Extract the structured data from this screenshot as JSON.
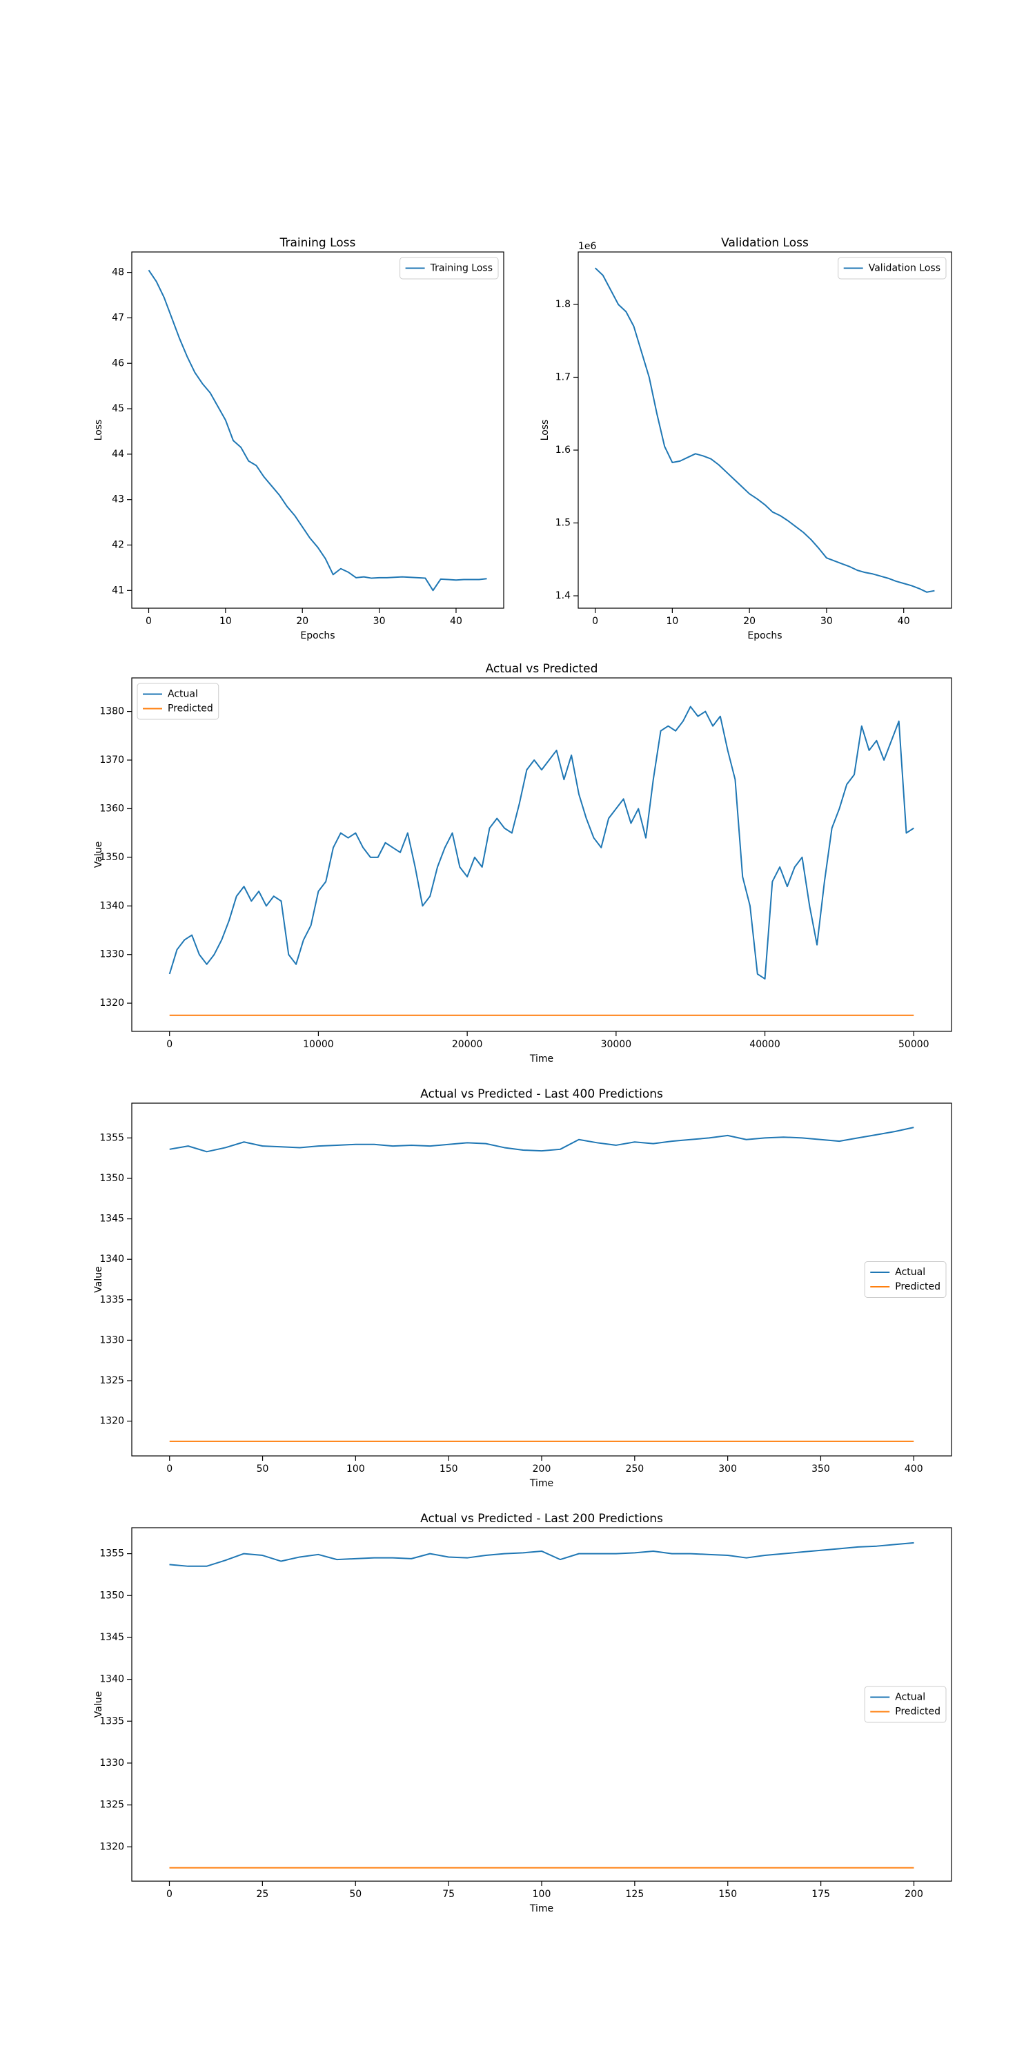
{
  "chart_data": [
    {
      "type": "line",
      "title": "Training Loss",
      "xlabel": "Epochs",
      "ylabel": "Loss",
      "legend": "upper right",
      "x": [
        0,
        1,
        2,
        3,
        4,
        5,
        6,
        7,
        8,
        9,
        10,
        11,
        12,
        13,
        14,
        15,
        16,
        17,
        18,
        19,
        20,
        21,
        22,
        23,
        24,
        25,
        26,
        27,
        28,
        29,
        30,
        31,
        32,
        33,
        34,
        35,
        36,
        37,
        38,
        39,
        40,
        41,
        42,
        43,
        44
      ],
      "series": [
        {
          "name": "Training Loss",
          "color": "#1f77b4",
          "values": [
            48.05,
            47.8,
            47.45,
            47.0,
            46.55,
            46.15,
            45.8,
            45.55,
            45.35,
            45.05,
            44.75,
            44.3,
            44.15,
            43.85,
            43.75,
            43.5,
            43.3,
            43.1,
            42.85,
            42.65,
            42.4,
            42.15,
            41.95,
            41.7,
            41.35,
            41.48,
            41.4,
            41.28,
            41.3,
            41.27,
            41.28,
            41.28,
            41.29,
            41.3,
            41.29,
            41.28,
            41.27,
            41.0,
            41.25,
            41.24,
            41.23,
            41.24,
            41.24,
            41.24,
            41.26
          ]
        }
      ],
      "xlim": [
        -2.2,
        46.2
      ],
      "ylim": [
        40.61,
        48.45
      ],
      "xticks": [
        0,
        10,
        20,
        30,
        40
      ],
      "yticks": [
        41,
        42,
        43,
        44,
        45,
        46,
        47,
        48
      ]
    },
    {
      "type": "line",
      "title": "Validation Loss",
      "xlabel": "Epochs",
      "ylabel": "Loss",
      "legend": "upper right",
      "offset_text": "1e6",
      "x": [
        0,
        1,
        2,
        3,
        4,
        5,
        6,
        7,
        8,
        9,
        10,
        11,
        12,
        13,
        14,
        15,
        16,
        17,
        18,
        19,
        20,
        21,
        22,
        23,
        24,
        25,
        26,
        27,
        28,
        29,
        30,
        31,
        32,
        33,
        34,
        35,
        36,
        37,
        38,
        39,
        40,
        41,
        42,
        43,
        44
      ],
      "series": [
        {
          "name": "Validation Loss",
          "color": "#1f77b4",
          "values": [
            1.85,
            1.84,
            1.82,
            1.8,
            1.79,
            1.77,
            1.735,
            1.7,
            1.65,
            1.605,
            1.583,
            1.585,
            1.59,
            1.595,
            1.592,
            1.588,
            1.58,
            1.57,
            1.56,
            1.55,
            1.54,
            1.533,
            1.525,
            1.515,
            1.51,
            1.503,
            1.495,
            1.487,
            1.477,
            1.465,
            1.452,
            1.448,
            1.444,
            1.44,
            1.435,
            1.432,
            1.43,
            1.427,
            1.424,
            1.42,
            1.417,
            1.414,
            1.41,
            1.405,
            1.407
          ]
        }
      ],
      "xlim": [
        -2.2,
        46.2
      ],
      "ylim": [
        1.383,
        1.872
      ],
      "xticks": [
        0,
        10,
        20,
        30,
        40
      ],
      "yticks": [
        1.4,
        1.5,
        1.6,
        1.7,
        1.8
      ]
    },
    {
      "type": "line",
      "title": "Actual vs Predicted",
      "xlabel": "Time",
      "ylabel": "Value",
      "legend": "upper left",
      "x": [
        0,
        500,
        1000,
        1500,
        2000,
        2500,
        3000,
        3500,
        4000,
        4500,
        5000,
        5500,
        6000,
        6500,
        7000,
        7500,
        8000,
        8500,
        9000,
        9500,
        10000,
        10500,
        11000,
        11500,
        12000,
        12500,
        13000,
        13500,
        14000,
        14500,
        15000,
        15500,
        16000,
        16500,
        17000,
        17500,
        18000,
        18500,
        19000,
        19500,
        20000,
        20500,
        21000,
        21500,
        22000,
        22500,
        23000,
        23500,
        24000,
        24500,
        25000,
        25500,
        26000,
        26500,
        27000,
        27500,
        28000,
        28500,
        29000,
        29500,
        30000,
        30500,
        31000,
        31500,
        32000,
        32500,
        33000,
        33500,
        34000,
        34500,
        35000,
        35500,
        36000,
        36500,
        37000,
        37500,
        38000,
        38500,
        39000,
        39500,
        40000,
        40500,
        41000,
        41500,
        42000,
        42500,
        43000,
        43500,
        44000,
        44500,
        45000,
        45500,
        46000,
        46500,
        47000,
        47500,
        48000,
        48500,
        49000,
        49500,
        50000
      ],
      "series": [
        {
          "name": "Actual",
          "color": "#1f77b4",
          "values": [
            1326,
            1331,
            1333,
            1334,
            1330,
            1328,
            1330,
            1333,
            1337,
            1342,
            1344,
            1341,
            1343,
            1340,
            1342,
            1341,
            1330,
            1328,
            1333,
            1336,
            1343,
            1345,
            1352,
            1355,
            1354,
            1355,
            1352,
            1350,
            1350,
            1353,
            1352,
            1351,
            1355,
            1348,
            1340,
            1342,
            1348,
            1352,
            1355,
            1348,
            1346,
            1350,
            1348,
            1356,
            1358,
            1356,
            1355,
            1361,
            1368,
            1370,
            1368,
            1370,
            1372,
            1366,
            1371,
            1363,
            1358,
            1354,
            1352,
            1358,
            1360,
            1362,
            1357,
            1360,
            1354,
            1366,
            1376,
            1377,
            1376,
            1378,
            1381,
            1379,
            1380,
            1377,
            1379,
            1372,
            1366,
            1346,
            1340,
            1326,
            1325,
            1345,
            1348,
            1344,
            1348,
            1350,
            1340,
            1332,
            1345,
            1356,
            1360,
            1365,
            1367,
            1377,
            1372,
            1374,
            1370,
            1374,
            1378,
            1355,
            1356
          ]
        },
        {
          "name": "Predicted",
          "color": "#ff7f0e",
          "values": [
            1317.5,
            1317.5,
            1317.5,
            1317.5,
            1317.5,
            1317.5,
            1317.5,
            1317.5,
            1317.5,
            1317.5,
            1317.5,
            1317.5,
            1317.5,
            1317.5,
            1317.5,
            1317.5,
            1317.5,
            1317.5,
            1317.5,
            1317.5,
            1317.5,
            1317.5,
            1317.5,
            1317.5,
            1317.5,
            1317.5,
            1317.5,
            1317.5,
            1317.5,
            1317.5,
            1317.5,
            1317.5,
            1317.5,
            1317.5,
            1317.5,
            1317.5,
            1317.5,
            1317.5,
            1317.5,
            1317.5,
            1317.5,
            1317.5,
            1317.5,
            1317.5,
            1317.5,
            1317.5,
            1317.5,
            1317.5,
            1317.5,
            1317.5,
            1317.5,
            1317.5,
            1317.5,
            1317.5,
            1317.5,
            1317.5,
            1317.5,
            1317.5,
            1317.5,
            1317.5,
            1317.5,
            1317.5,
            1317.5,
            1317.5,
            1317.5,
            1317.5,
            1317.5,
            1317.5,
            1317.5,
            1317.5,
            1317.5,
            1317.5,
            1317.5,
            1317.5,
            1317.5,
            1317.5,
            1317.5,
            1317.5,
            1317.5,
            1317.5,
            1317.5,
            1317.5,
            1317.5,
            1317.5,
            1317.5,
            1317.5,
            1317.5,
            1317.5,
            1317.5,
            1317.5,
            1317.5,
            1317.5,
            1317.5,
            1317.5,
            1317.5,
            1317.5,
            1317.5,
            1317.5,
            1317.5,
            1317.5,
            1317.5
          ]
        }
      ],
      "xlim": [
        -2536,
        52536
      ],
      "ylim": [
        1314.2,
        1386.9
      ],
      "xticks": [
        0,
        10000,
        20000,
        30000,
        40000,
        50000
      ],
      "yticks": [
        1320,
        1330,
        1340,
        1350,
        1360,
        1370,
        1380
      ]
    },
    {
      "type": "line",
      "title": "Actual vs Predicted - Last 400 Predictions",
      "xlabel": "Time",
      "ylabel": "Value",
      "legend": "center right",
      "x": [
        0,
        10,
        20,
        30,
        40,
        50,
        60,
        70,
        80,
        90,
        100,
        110,
        120,
        130,
        140,
        150,
        160,
        170,
        180,
        190,
        200,
        210,
        220,
        230,
        240,
        250,
        260,
        270,
        280,
        290,
        300,
        310,
        320,
        330,
        340,
        350,
        360,
        370,
        380,
        390,
        400
      ],
      "series": [
        {
          "name": "Actual",
          "color": "#1f77b4",
          "values": [
            1353.6,
            1354,
            1353.3,
            1353.8,
            1354.5,
            1354,
            1353.9,
            1353.8,
            1354,
            1354.1,
            1354.2,
            1354.2,
            1354,
            1354.1,
            1354,
            1354.2,
            1354.4,
            1354.3,
            1353.8,
            1353.5,
            1353.4,
            1353.6,
            1354.8,
            1354.4,
            1354.1,
            1354.5,
            1354.3,
            1354.6,
            1354.8,
            1355,
            1355.3,
            1354.8,
            1355,
            1355.1,
            1355,
            1354.8,
            1354.6,
            1355,
            1355.4,
            1355.8,
            1356.3
          ]
        },
        {
          "name": "Predicted",
          "color": "#ff7f0e",
          "values": [
            1317.5,
            1317.5,
            1317.5,
            1317.5,
            1317.5,
            1317.5,
            1317.5,
            1317.5,
            1317.5,
            1317.5,
            1317.5,
            1317.5,
            1317.5,
            1317.5,
            1317.5,
            1317.5,
            1317.5,
            1317.5,
            1317.5,
            1317.5,
            1317.5,
            1317.5,
            1317.5,
            1317.5,
            1317.5,
            1317.5,
            1317.5,
            1317.5,
            1317.5,
            1317.5,
            1317.5,
            1317.5,
            1317.5,
            1317.5,
            1317.5,
            1317.5,
            1317.5,
            1317.5,
            1317.5,
            1317.5,
            1317.5
          ]
        }
      ],
      "xlim": [
        -20.3,
        420.3
      ],
      "ylim": [
        1315.7,
        1359.3
      ],
      "xticks": [
        0,
        50,
        100,
        150,
        200,
        250,
        300,
        350,
        400
      ],
      "yticks": [
        1320,
        1325,
        1330,
        1335,
        1340,
        1345,
        1350,
        1355
      ]
    },
    {
      "type": "line",
      "title": "Actual vs Predicted - Last 200 Predictions",
      "xlabel": "Time",
      "ylabel": "Value",
      "legend": "center right",
      "x": [
        0,
        5,
        10,
        15,
        20,
        25,
        30,
        35,
        40,
        45,
        50,
        55,
        60,
        65,
        70,
        75,
        80,
        85,
        90,
        95,
        100,
        105,
        110,
        115,
        120,
        125,
        130,
        135,
        140,
        145,
        150,
        155,
        160,
        165,
        170,
        175,
        180,
        185,
        190,
        195,
        200
      ],
      "series": [
        {
          "name": "Actual",
          "color": "#1f77b4",
          "values": [
            1353.7,
            1353.5,
            1353.5,
            1354.2,
            1355,
            1354.8,
            1354.1,
            1354.6,
            1354.9,
            1354.3,
            1354.4,
            1354.5,
            1354.5,
            1354.4,
            1355,
            1354.6,
            1354.5,
            1354.8,
            1355,
            1355.1,
            1355.3,
            1354.3,
            1355,
            1355,
            1355,
            1355.1,
            1355.3,
            1355,
            1355,
            1354.9,
            1354.8,
            1354.5,
            1354.8,
            1355,
            1355.2,
            1355.4,
            1355.6,
            1355.8,
            1355.9,
            1356.1,
            1356.3
          ]
        },
        {
          "name": "Predicted",
          "color": "#ff7f0e",
          "values": [
            1317.5,
            1317.5,
            1317.5,
            1317.5,
            1317.5,
            1317.5,
            1317.5,
            1317.5,
            1317.5,
            1317.5,
            1317.5,
            1317.5,
            1317.5,
            1317.5,
            1317.5,
            1317.5,
            1317.5,
            1317.5,
            1317.5,
            1317.5,
            1317.5,
            1317.5,
            1317.5,
            1317.5,
            1317.5,
            1317.5,
            1317.5,
            1317.5,
            1317.5,
            1317.5,
            1317.5,
            1317.5,
            1317.5,
            1317.5,
            1317.5,
            1317.5,
            1317.5,
            1317.5,
            1317.5,
            1317.5,
            1317.5
          ]
        }
      ],
      "xlim": [
        -10.1,
        210.1
      ],
      "ylim": [
        1315.9,
        1358.1
      ],
      "xticks": [
        0,
        25,
        50,
        75,
        100,
        125,
        150,
        175,
        200
      ],
      "yticks": [
        1320,
        1325,
        1330,
        1335,
        1340,
        1345,
        1350,
        1355
      ]
    }
  ]
}
